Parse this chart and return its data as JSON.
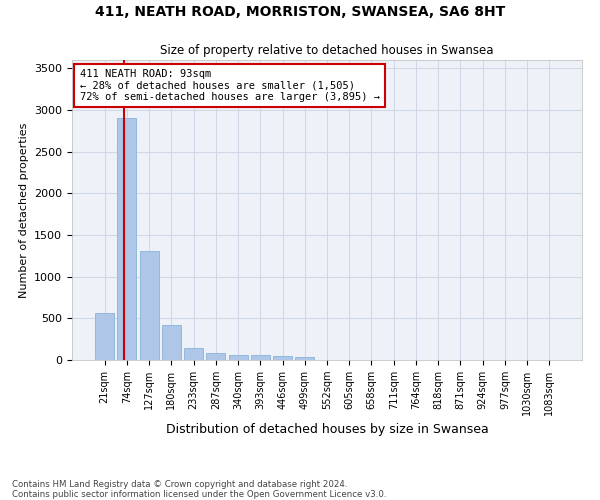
{
  "title1": "411, NEATH ROAD, MORRISTON, SWANSEA, SA6 8HT",
  "title2": "Size of property relative to detached houses in Swansea",
  "xlabel": "Distribution of detached houses by size in Swansea",
  "ylabel": "Number of detached properties",
  "footnote": "Contains HM Land Registry data © Crown copyright and database right 2024.\nContains public sector information licensed under the Open Government Licence v3.0.",
  "bin_labels": [
    "21sqm",
    "74sqm",
    "127sqm",
    "180sqm",
    "233sqm",
    "287sqm",
    "340sqm",
    "393sqm",
    "446sqm",
    "499sqm",
    "552sqm",
    "605sqm",
    "658sqm",
    "711sqm",
    "764sqm",
    "818sqm",
    "871sqm",
    "924sqm",
    "977sqm",
    "1030sqm",
    "1083sqm"
  ],
  "bar_heights": [
    570,
    2900,
    1310,
    415,
    150,
    90,
    65,
    55,
    45,
    35,
    0,
    0,
    0,
    0,
    0,
    0,
    0,
    0,
    0,
    0,
    0
  ],
  "bar_color": "#aec6e8",
  "bar_edgecolor": "#7aadd4",
  "grid_color": "#d0d8e8",
  "background_color": "#eef2f8",
  "property_line_color": "#cc0000",
  "annotation_text": "411 NEATH ROAD: 93sqm\n← 28% of detached houses are smaller (1,505)\n72% of semi-detached houses are larger (3,895) →",
  "annotation_box_edgecolor": "#cc0000",
  "ylim": [
    0,
    3600
  ],
  "yticks": [
    0,
    500,
    1000,
    1500,
    2000,
    2500,
    3000,
    3500
  ]
}
